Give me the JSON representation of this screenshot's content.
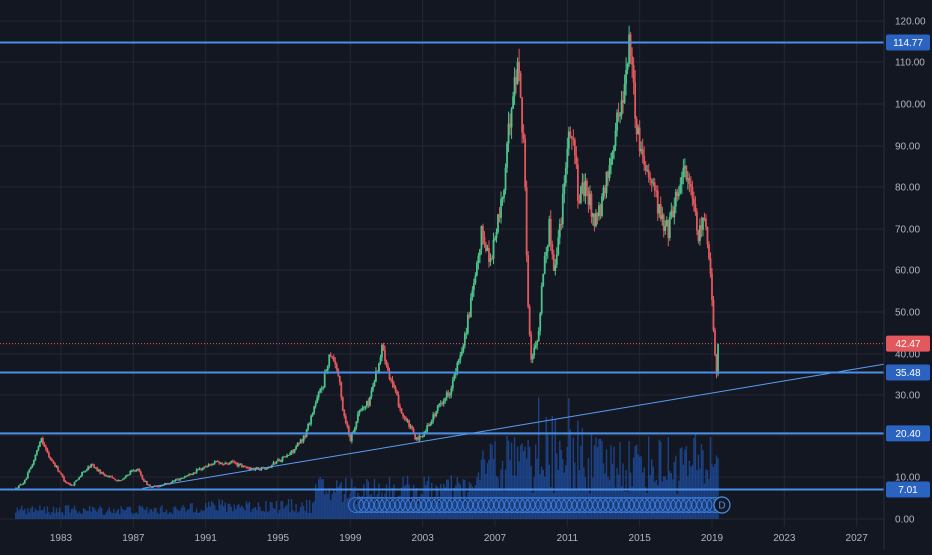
{
  "chart_data": {
    "type": "candlestick",
    "y_axis": {
      "scale": "log",
      "ticks": [
        "120.00",
        "110.00",
        "100.00",
        "90.00",
        "80.00",
        "70.00",
        "60.00",
        "50.00",
        "40.00",
        "30.00",
        "20.00",
        "10.00",
        "0.00"
      ],
      "tick_values": [
        120,
        110,
        100,
        90,
        80,
        70,
        60,
        50,
        40,
        30,
        20,
        10,
        0
      ]
    },
    "x_axis": {
      "ticks": [
        "1983",
        "1987",
        "1991",
        "1995",
        "1999",
        "2003",
        "2007",
        "2011",
        "2015",
        "2019",
        "2023",
        "2027"
      ],
      "tick_years": [
        1983,
        1987,
        1991,
        1995,
        1999,
        2003,
        2007,
        2011,
        2015,
        2019,
        2023,
        2027
      ]
    },
    "last_price": {
      "value": 42.47,
      "label": "42.47"
    },
    "horizontal_levels": [
      {
        "value": 114.77,
        "label": "114.77"
      },
      {
        "value": 35.48,
        "label": "35.48"
      },
      {
        "value": 20.4,
        "label": "20.40"
      },
      {
        "value": 7.01,
        "label": "7.01"
      }
    ],
    "trendline": {
      "start": {
        "year": 1987.5,
        "price": 7.3
      },
      "end": {
        "year": 2028.5,
        "price": 37.5
      }
    },
    "price_path": [
      [
        1980.5,
        7.2
      ],
      [
        1981.0,
        9
      ],
      [
        1981.5,
        14
      ],
      [
        1981.9,
        19.5
      ],
      [
        1982.3,
        15
      ],
      [
        1982.8,
        12
      ],
      [
        1983.2,
        9
      ],
      [
        1983.6,
        8
      ],
      [
        1984.2,
        11
      ],
      [
        1984.7,
        13
      ],
      [
        1985.2,
        11
      ],
      [
        1985.7,
        10
      ],
      [
        1986.3,
        9
      ],
      [
        1986.8,
        11
      ],
      [
        1987.2,
        12
      ],
      [
        1987.6,
        9
      ],
      [
        1988.0,
        7.5
      ],
      [
        1988.5,
        8
      ],
      [
        1989.2,
        9
      ],
      [
        1989.8,
        10
      ],
      [
        1990.5,
        11.5
      ],
      [
        1991.0,
        12.5
      ],
      [
        1991.5,
        13.5
      ],
      [
        1992.0,
        13
      ],
      [
        1992.5,
        13.5
      ],
      [
        1993.0,
        12.5
      ],
      [
        1993.5,
        12
      ],
      [
        1994.0,
        12
      ],
      [
        1994.5,
        12.5
      ],
      [
        1995.0,
        14
      ],
      [
        1995.5,
        15
      ],
      [
        1996.0,
        17
      ],
      [
        1996.5,
        20
      ],
      [
        1997.0,
        27
      ],
      [
        1997.5,
        33
      ],
      [
        1997.9,
        41
      ],
      [
        1998.3,
        36
      ],
      [
        1998.6,
        26
      ],
      [
        1999.0,
        19
      ],
      [
        1999.5,
        26
      ],
      [
        2000.0,
        28
      ],
      [
        2000.4,
        35
      ],
      [
        2000.8,
        42
      ],
      [
        2001.1,
        36
      ],
      [
        2001.5,
        30
      ],
      [
        2001.9,
        25
      ],
      [
        2002.3,
        22
      ],
      [
        2002.7,
        18.5
      ],
      [
        2003.0,
        20
      ],
      [
        2003.5,
        24
      ],
      [
        2004.0,
        28
      ],
      [
        2004.5,
        31
      ],
      [
        2005.0,
        38
      ],
      [
        2005.5,
        48
      ],
      [
        2006.0,
        60
      ],
      [
        2006.3,
        70
      ],
      [
        2006.7,
        62
      ],
      [
        2007.0,
        68
      ],
      [
        2007.5,
        80
      ],
      [
        2007.9,
        100
      ],
      [
        2008.3,
        110
      ],
      [
        2008.6,
        90
      ],
      [
        2008.8,
        55
      ],
      [
        2009.0,
        38
      ],
      [
        2009.4,
        45
      ],
      [
        2009.7,
        62
      ],
      [
        2010.0,
        70
      ],
      [
        2010.3,
        60
      ],
      [
        2010.7,
        75
      ],
      [
        2011.0,
        92
      ],
      [
        2011.3,
        94
      ],
      [
        2011.6,
        77
      ],
      [
        2012.0,
        80
      ],
      [
        2012.5,
        72
      ],
      [
        2012.9,
        75
      ],
      [
        2013.3,
        85
      ],
      [
        2013.7,
        95
      ],
      [
        2014.0,
        100
      ],
      [
        2014.3,
        110
      ],
      [
        2014.45,
        117
      ],
      [
        2014.7,
        100
      ],
      [
        2015.0,
        90
      ],
      [
        2015.4,
        85
      ],
      [
        2015.8,
        80
      ],
      [
        2016.2,
        72
      ],
      [
        2016.6,
        70
      ],
      [
        2017.0,
        78
      ],
      [
        2017.5,
        85
      ],
      [
        2017.8,
        80
      ],
      [
        2018.2,
        68
      ],
      [
        2018.6,
        72
      ],
      [
        2018.8,
        67
      ],
      [
        2019.1,
        45
      ],
      [
        2019.25,
        36
      ],
      [
        2019.35,
        42.47
      ]
    ]
  }
}
